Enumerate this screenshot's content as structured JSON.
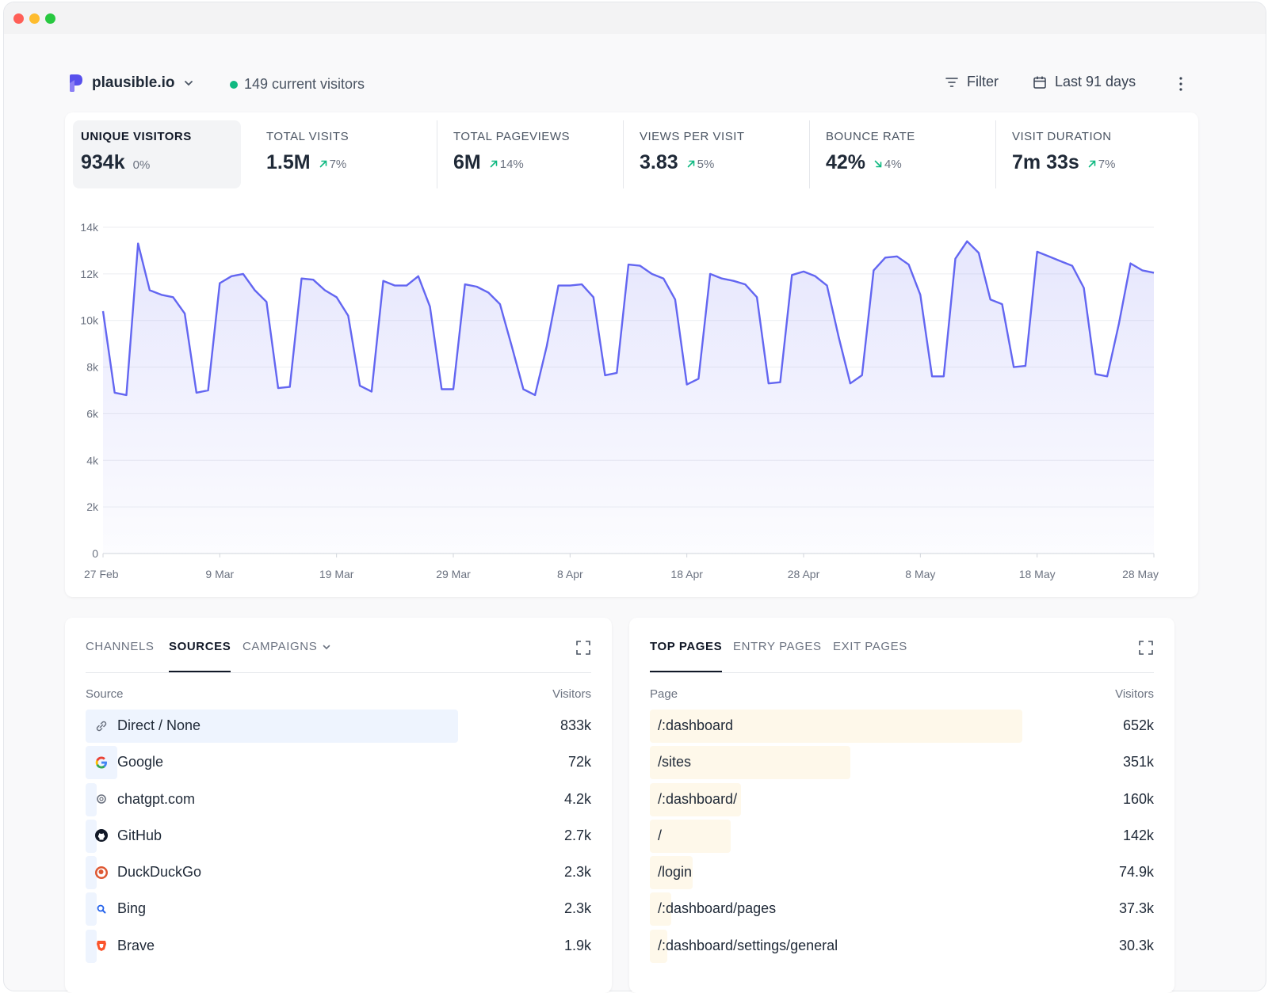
{
  "header": {
    "site_name": "plausible.io",
    "current_visitors": "149 current visitors",
    "filter_label": "Filter",
    "date_range_label": "Last 91 days"
  },
  "stats": [
    {
      "label": "UNIQUE VISITORS",
      "value": "934k",
      "change": "0%",
      "direction": "none"
    },
    {
      "label": "TOTAL VISITS",
      "value": "1.5M",
      "change": "7%",
      "direction": "up"
    },
    {
      "label": "TOTAL PAGEVIEWS",
      "value": "6M",
      "change": "14%",
      "direction": "up"
    },
    {
      "label": "VIEWS PER VISIT",
      "value": "3.83",
      "change": "5%",
      "direction": "up"
    },
    {
      "label": "BOUNCE RATE",
      "value": "42%",
      "change": "4%",
      "direction": "down"
    },
    {
      "label": "VISIT DURATION",
      "value": "7m 33s",
      "change": "7%",
      "direction": "up"
    }
  ],
  "colors": {
    "accent": "#6366f1",
    "positive": "#10b981",
    "source_bar": "#eef4fe",
    "page_bar": "#fef8ea"
  },
  "chart_data": {
    "type": "area",
    "series": [
      {
        "values": [
          10400,
          6900,
          6800,
          13300,
          11300,
          11100,
          11000,
          10300,
          6900,
          7000,
          11600,
          11900,
          12000,
          11300,
          10800,
          7100,
          7150,
          11800,
          11750,
          11300,
          11000,
          10200,
          7200,
          6950,
          11700,
          11500,
          11500,
          11900,
          10600,
          7050,
          7050,
          11550,
          11450,
          11200,
          10700,
          8900,
          7050,
          6800,
          8900,
          11500,
          11500,
          11550,
          11000,
          7650,
          7750,
          12400,
          12350,
          12000,
          11800,
          10900,
          7250,
          7500,
          12000,
          11800,
          11700,
          11550,
          11000,
          7300,
          7350,
          11950,
          12100,
          11900,
          11500,
          9300,
          7300,
          7650,
          12150,
          12700,
          12750,
          12400,
          11100,
          7600,
          7600,
          12650,
          13400,
          12900,
          10900,
          10700,
          8000,
          8050,
          12950,
          12750,
          12550,
          12350,
          11400,
          7700,
          7600,
          9850,
          12450,
          12150,
          12050
        ]
      }
    ],
    "x_tick_labels": [
      "27 Feb",
      "9 Mar",
      "19 Mar",
      "29 Mar",
      "8 Apr",
      "18 Apr",
      "28 Apr",
      "8 May",
      "18 May",
      "28 May"
    ],
    "y_tick_labels": [
      "0",
      "2k",
      "4k",
      "6k",
      "8k",
      "10k",
      "12k",
      "14k"
    ],
    "ylim": [
      0,
      14000
    ],
    "grid": true
  },
  "sources_panel": {
    "tabs": [
      "CHANNELS",
      "SOURCES",
      "CAMPAIGNS"
    ],
    "active_tab": "SOURCES",
    "col_label": "Source",
    "col_value": "Visitors",
    "rows": [
      {
        "label": "Direct / None",
        "value": "833k",
        "fraction": 1.0,
        "icon": "link-icon"
      },
      {
        "label": "Google",
        "value": "72k",
        "fraction": 0.086,
        "icon": "google-icon"
      },
      {
        "label": "chatgpt.com",
        "value": "4.2k",
        "fraction": 0.005,
        "icon": "chatgpt-icon"
      },
      {
        "label": "GitHub",
        "value": "2.7k",
        "fraction": 0.003,
        "icon": "github-icon"
      },
      {
        "label": "DuckDuckGo",
        "value": "2.3k",
        "fraction": 0.003,
        "icon": "duckduckgo-icon"
      },
      {
        "label": "Bing",
        "value": "2.3k",
        "fraction": 0.003,
        "icon": "bing-icon"
      },
      {
        "label": "Brave",
        "value": "1.9k",
        "fraction": 0.002,
        "icon": "brave-icon"
      }
    ]
  },
  "pages_panel": {
    "tabs": [
      "TOP PAGES",
      "ENTRY PAGES",
      "EXIT PAGES"
    ],
    "active_tab": "TOP PAGES",
    "col_label": "Page",
    "col_value": "Visitors",
    "rows": [
      {
        "label": "/:dashboard",
        "value": "652k",
        "fraction": 1.0
      },
      {
        "label": "/sites",
        "value": "351k",
        "fraction": 0.538
      },
      {
        "label": "/:dashboard/",
        "value": "160k",
        "fraction": 0.245
      },
      {
        "label": "/",
        "value": "142k",
        "fraction": 0.218
      },
      {
        "label": "/login",
        "value": "74.9k",
        "fraction": 0.115
      },
      {
        "label": "/:dashboard/pages",
        "value": "37.3k",
        "fraction": 0.057
      },
      {
        "label": "/:dashboard/settings/general",
        "value": "30.3k",
        "fraction": 0.046
      }
    ]
  }
}
